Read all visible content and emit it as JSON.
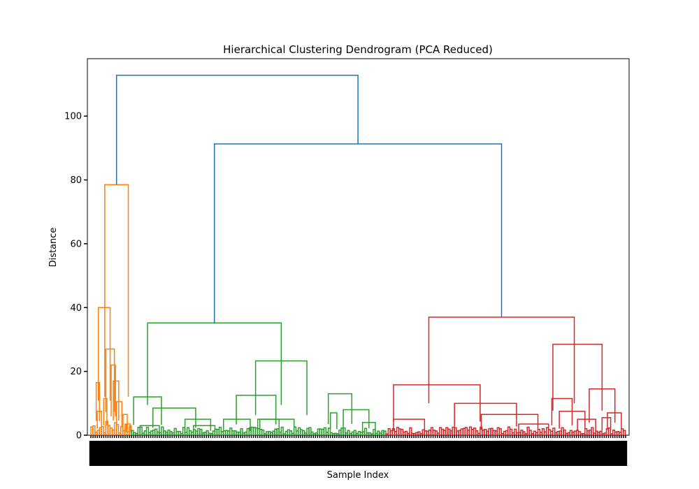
{
  "chart_data": {
    "type": "dendrogram",
    "title": "Hierarchical Clustering Dendrogram (PCA Reduced)",
    "xlabel": "Sample Index",
    "ylabel": "Distance",
    "ylim": [
      0,
      118
    ],
    "yticks": [
      0,
      20,
      40,
      60,
      80,
      100
    ],
    "grid": false,
    "legend": "none",
    "link_color_above_threshold": "#1f77b4",
    "clusters": [
      {
        "color": "#ff7f0e",
        "merge_height": 78.5
      },
      {
        "color": "#2ca02c",
        "merge_height": 35.2
      },
      {
        "color": "#d62728",
        "merge_height": 37.0
      }
    ],
    "top_links": [
      {
        "height": 91.3,
        "joins": "green cluster + red cluster"
      },
      {
        "height": 112.8,
        "joins": "orange cluster + rest"
      }
    ],
    "cluster_links": {
      "orange": [
        {
          "left": 2.5,
          "right": 4.0,
          "height": 16.5
        },
        {
          "left": 3.0,
          "right": 5.0,
          "height": 7.5
        },
        {
          "left": 6.0,
          "right": 7.5,
          "height": 11.5
        },
        {
          "left": 9.5,
          "right": 11.5,
          "height": 22.0
        },
        {
          "left": 10.5,
          "right": 13.0,
          "height": 17.0
        },
        {
          "left": 12.0,
          "right": 14.5,
          "height": 10.5
        },
        {
          "left": 7.0,
          "right": 11.0,
          "height": 27.0
        },
        {
          "left": 3.5,
          "right": 9.0,
          "height": 40.0
        },
        {
          "left": 6.5,
          "right": 17.5,
          "height": 78.5
        },
        {
          "left": 15.0,
          "right": 17.0,
          "height": 6.5
        },
        {
          "left": 16.5,
          "right": 18.5,
          "height": 3.5
        }
      ],
      "green": [
        {
          "left": 20.0,
          "right": 33.0,
          "height": 12.0
        },
        {
          "left": 29.0,
          "right": 49.0,
          "height": 8.5
        },
        {
          "left": 44.0,
          "right": 56.0,
          "height": 5.0
        },
        {
          "left": 23.0,
          "right": 32.0,
          "height": 3.0
        },
        {
          "left": 48.0,
          "right": 58.0,
          "height": 3.0
        },
        {
          "left": 62.0,
          "right": 74.5,
          "height": 5.0
        },
        {
          "left": 68.0,
          "right": 86.5,
          "height": 12.5
        },
        {
          "left": 78.0,
          "right": 88.0,
          "height": 5.0
        },
        {
          "left": 79.0,
          "right": 95.0,
          "height": 5.0
        },
        {
          "left": 77.0,
          "right": 101.0,
          "height": 23.3
        },
        {
          "left": 26.5,
          "right": 89.0,
          "height": 35.2
        },
        {
          "left": 111.0,
          "right": 122.0,
          "height": 13.0
        },
        {
          "left": 118.0,
          "right": 130.0,
          "height": 8.0
        },
        {
          "left": 127.0,
          "right": 133.0,
          "height": 4.0
        },
        {
          "left": 112.0,
          "right": 115.0,
          "height": 7.0
        }
      ],
      "red": [
        {
          "left": 141.5,
          "right": 156.0,
          "height": 5.0
        },
        {
          "left": 141.5,
          "right": 182.0,
          "height": 15.8
        },
        {
          "left": 170.0,
          "right": 199.0,
          "height": 10.0
        },
        {
          "left": 182.5,
          "right": 209.0,
          "height": 6.5
        },
        {
          "left": 200.0,
          "right": 214.0,
          "height": 3.5
        },
        {
          "left": 158.0,
          "right": 226.0,
          "height": 37.0
        },
        {
          "left": 216.0,
          "right": 239.0,
          "height": 28.5
        },
        {
          "left": 215.5,
          "right": 225.0,
          "height": 11.5
        },
        {
          "left": 219.0,
          "right": 231.0,
          "height": 7.5
        },
        {
          "left": 227.5,
          "right": 236.0,
          "height": 5.0
        },
        {
          "left": 233.0,
          "right": 245.0,
          "height": 14.5
        },
        {
          "left": 241.5,
          "right": 248.0,
          "height": 7.0
        },
        {
          "left": 239.0,
          "right": 243.0,
          "height": 5.5
        }
      ]
    }
  }
}
